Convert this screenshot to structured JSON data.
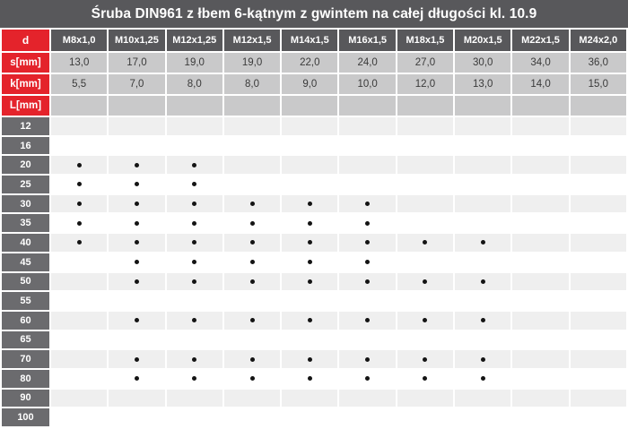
{
  "title": "Śruba DIN961 z łbem 6-kątnym z gwintem na całej długości kl. 10.9",
  "colors": {
    "title_bg": "#58585b",
    "header_bg": "#58585b",
    "red": "#e4232b",
    "length_label_bg": "#6b6b6e",
    "spec_cell_bg": "#c9c9ca",
    "row_even_bg": "#efefef",
    "row_odd_bg": "#ffffff",
    "value_text": "#3a3a3a",
    "dot": "#141414"
  },
  "table": {
    "corner_label": "d",
    "diameters": [
      "M8x1,0",
      "M10x1,25",
      "M12x1,25",
      "M12x1,5",
      "M14x1,5",
      "M16x1,5",
      "M18x1,5",
      "M20x1,5",
      "M22x1,5",
      "M24x2,0"
    ],
    "spec_rows": [
      {
        "key": "s",
        "label": "s[mm]",
        "values": [
          "13,0",
          "17,0",
          "19,0",
          "19,0",
          "22,0",
          "24,0",
          "27,0",
          "30,0",
          "34,0",
          "36,0"
        ]
      },
      {
        "key": "k",
        "label": "k[mm]",
        "values": [
          "5,5",
          "7,0",
          "8,0",
          "8,0",
          "9,0",
          "10,0",
          "12,0",
          "13,0",
          "14,0",
          "15,0"
        ]
      },
      {
        "key": "L",
        "label": "L[mm]",
        "values": [
          "",
          "",
          "",
          "",
          "",
          "",
          "",
          "",
          "",
          ""
        ]
      }
    ],
    "length_rows": [
      {
        "length": "12",
        "available": [
          0,
          0,
          0,
          0,
          0,
          0,
          0,
          0,
          0,
          0
        ]
      },
      {
        "length": "16",
        "available": [
          0,
          0,
          0,
          0,
          0,
          0,
          0,
          0,
          0,
          0
        ]
      },
      {
        "length": "20",
        "available": [
          1,
          1,
          1,
          0,
          0,
          0,
          0,
          0,
          0,
          0
        ]
      },
      {
        "length": "25",
        "available": [
          1,
          1,
          1,
          0,
          0,
          0,
          0,
          0,
          0,
          0
        ]
      },
      {
        "length": "30",
        "available": [
          1,
          1,
          1,
          1,
          1,
          1,
          0,
          0,
          0,
          0
        ]
      },
      {
        "length": "35",
        "available": [
          1,
          1,
          1,
          1,
          1,
          1,
          0,
          0,
          0,
          0
        ]
      },
      {
        "length": "40",
        "available": [
          1,
          1,
          1,
          1,
          1,
          1,
          1,
          1,
          0,
          0
        ]
      },
      {
        "length": "45",
        "available": [
          0,
          1,
          1,
          1,
          1,
          1,
          0,
          0,
          0,
          0
        ]
      },
      {
        "length": "50",
        "available": [
          0,
          1,
          1,
          1,
          1,
          1,
          1,
          1,
          0,
          0
        ]
      },
      {
        "length": "55",
        "available": [
          0,
          0,
          0,
          0,
          0,
          0,
          0,
          0,
          0,
          0
        ]
      },
      {
        "length": "60",
        "available": [
          0,
          1,
          1,
          1,
          1,
          1,
          1,
          1,
          0,
          0
        ]
      },
      {
        "length": "65",
        "available": [
          0,
          0,
          0,
          0,
          0,
          0,
          0,
          0,
          0,
          0
        ]
      },
      {
        "length": "70",
        "available": [
          0,
          1,
          1,
          1,
          1,
          1,
          1,
          1,
          0,
          0
        ]
      },
      {
        "length": "80",
        "available": [
          0,
          1,
          1,
          1,
          1,
          1,
          1,
          1,
          0,
          0
        ]
      },
      {
        "length": "90",
        "available": [
          0,
          0,
          0,
          0,
          0,
          0,
          0,
          0,
          0,
          0
        ]
      },
      {
        "length": "100",
        "available": [
          0,
          0,
          0,
          0,
          0,
          0,
          0,
          0,
          0,
          0
        ]
      }
    ]
  }
}
